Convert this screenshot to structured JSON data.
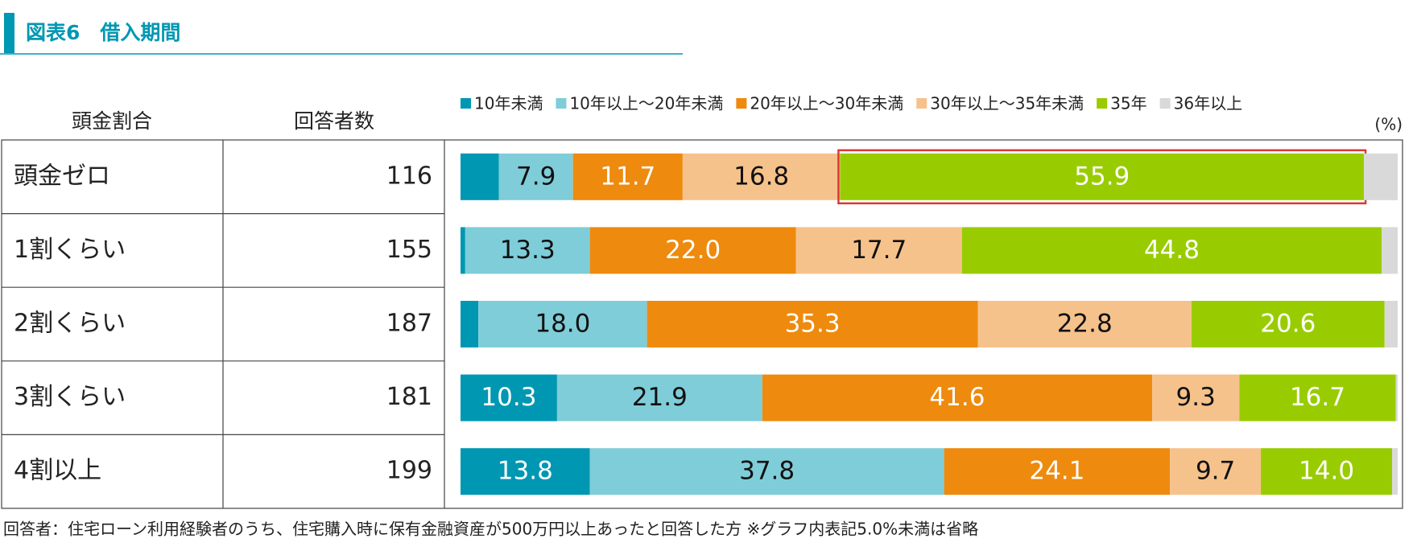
{
  "title": "図表6　借入期間",
  "table": {
    "headers": [
      "頭金割合",
      "回答者数"
    ],
    "counts": [
      116,
      155,
      187,
      181,
      199
    ]
  },
  "note": "回答者：住宅ローン利用経験者のうち、住宅購入時に保有金融資産が500万円以上あったと回答した方 ※グラフ内表記5.0%未満は省略",
  "chart_data": {
    "type": "stacked-bar",
    "unit": "(%)",
    "categories": [
      "頭金ゼロ",
      "1割くらい",
      "2割くらい",
      "3割くらい",
      "4割以上"
    ],
    "series": [
      {
        "name": "10年未満",
        "color": "#0097b2",
        "label_color": "#ffffff",
        "values": [
          4.1,
          0.5,
          1.9,
          10.3,
          13.8
        ],
        "value_labels": [
          null,
          null,
          null,
          "10.3",
          "13.8"
        ]
      },
      {
        "name": "10年以上～20年未満",
        "color": "#7fcdd9",
        "label_color": "#111111",
        "values": [
          7.9,
          13.3,
          18.0,
          21.9,
          37.8
        ],
        "value_labels": [
          "7.9",
          "13.3",
          "18.0",
          "21.9",
          "37.8"
        ]
      },
      {
        "name": "20年以上～30年未満",
        "color": "#ee8a0e",
        "label_color": "#ffffff",
        "values": [
          11.7,
          22.0,
          35.3,
          41.6,
          24.1
        ],
        "value_labels": [
          "11.7",
          "22.0",
          "35.3",
          "41.6",
          "24.1"
        ]
      },
      {
        "name": "30年以上～35年未満",
        "color": "#f6c28b",
        "label_color": "#111111",
        "values": [
          16.8,
          17.7,
          22.8,
          9.3,
          9.7
        ],
        "value_labels": [
          "16.8",
          "17.7",
          "22.8",
          "9.3",
          "9.7"
        ]
      },
      {
        "name": "35年",
        "color": "#99cc00",
        "label_color": "#ffffff",
        "values": [
          55.9,
          44.8,
          20.6,
          16.7,
          14.0
        ],
        "value_labels": [
          "55.9",
          "44.8",
          "20.6",
          "16.7",
          "14.0"
        ]
      },
      {
        "name": "36年以上",
        "color": "#d9d9d9",
        "label_color": "#111111",
        "values": [
          3.6,
          1.7,
          1.4,
          0.2,
          0.6
        ],
        "value_labels": [
          null,
          null,
          null,
          null,
          null
        ]
      }
    ],
    "xlim": [
      0,
      100
    ]
  }
}
